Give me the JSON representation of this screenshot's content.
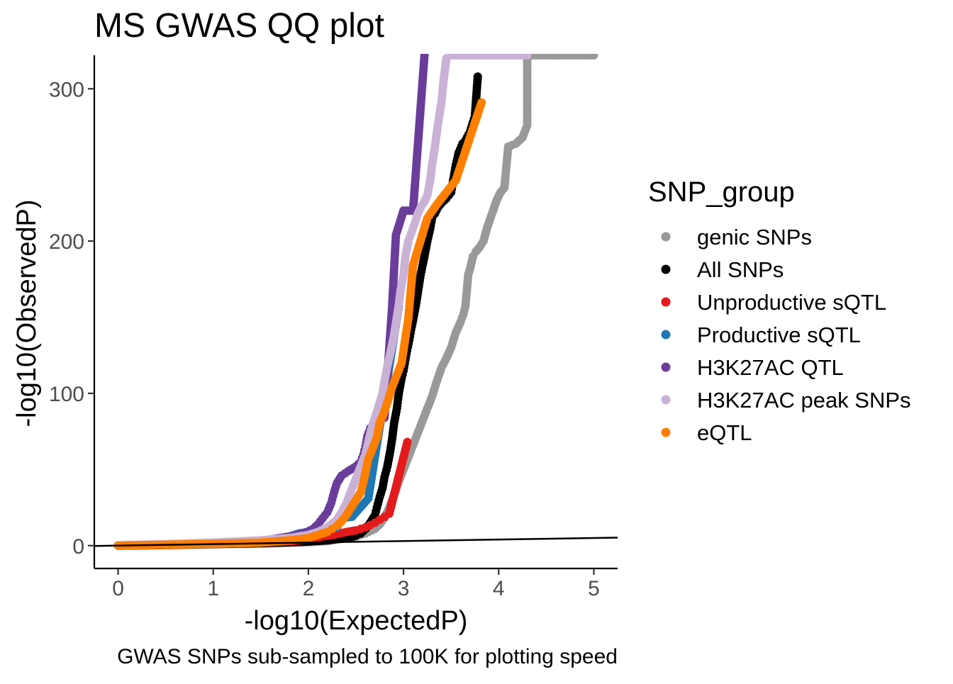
{
  "chart_data": {
    "type": "scatter",
    "title": "MS GWAS QQ plot",
    "xlabel": "-log10(ExpectedP)",
    "ylabel": "-log10(ObservedP)",
    "caption": "GWAS SNPs sub-sampled to 100K for plotting speed",
    "xlim": [
      -0.25,
      5.25
    ],
    "ylim": [
      -15,
      322
    ],
    "x_ticks": [
      {
        "value": 0,
        "label": "0"
      },
      {
        "value": 1,
        "label": "1"
      },
      {
        "value": 2,
        "label": "2"
      },
      {
        "value": 3,
        "label": "3"
      },
      {
        "value": 4,
        "label": "4"
      },
      {
        "value": 5,
        "label": "5"
      }
    ],
    "y_ticks": [
      {
        "value": 0,
        "label": "0"
      },
      {
        "value": 100,
        "label": "100"
      },
      {
        "value": 200,
        "label": "200"
      },
      {
        "value": 300,
        "label": "300"
      }
    ],
    "reference_line": {
      "type": "identity",
      "from": [
        -0.25,
        -0.25
      ],
      "to": [
        5.25,
        5.25
      ]
    },
    "grid": false,
    "legend": {
      "title": "SNP_group",
      "placement": "right"
    },
    "series": [
      {
        "name": "genic SNPs",
        "color": "#999999",
        "points": [
          [
            0,
            0
          ],
          [
            0.2,
            0.1
          ],
          [
            0.4,
            0.3
          ],
          [
            0.6,
            0.5
          ],
          [
            0.8,
            0.7
          ],
          [
            1,
            0.9
          ],
          [
            1.2,
            1.1
          ],
          [
            1.4,
            1.3
          ],
          [
            1.6,
            1.5
          ],
          [
            1.8,
            1.8
          ],
          [
            2,
            2.2
          ],
          [
            2.2,
            3
          ],
          [
            2.4,
            5
          ],
          [
            2.5,
            6
          ],
          [
            2.6,
            8
          ],
          [
            2.7,
            11
          ],
          [
            2.75,
            14
          ],
          [
            2.8,
            18
          ],
          [
            2.85,
            25
          ],
          [
            2.9,
            33
          ],
          [
            2.95,
            42
          ],
          [
            3,
            50
          ],
          [
            3.05,
            58
          ],
          [
            3.1,
            66
          ],
          [
            3.15,
            74
          ],
          [
            3.2,
            82
          ],
          [
            3.25,
            90
          ],
          [
            3.3,
            98
          ],
          [
            3.35,
            108
          ],
          [
            3.4,
            117
          ],
          [
            3.45,
            123
          ],
          [
            3.5,
            130
          ],
          [
            3.55,
            140
          ],
          [
            3.6,
            147
          ],
          [
            3.63,
            152
          ],
          [
            3.65,
            157
          ],
          [
            3.68,
            178
          ],
          [
            3.7,
            182
          ],
          [
            3.73,
            190
          ],
          [
            3.76,
            193
          ],
          [
            3.8,
            196
          ],
          [
            3.84,
            200
          ],
          [
            3.88,
            209
          ],
          [
            3.93,
            218
          ],
          [
            3.98,
            227
          ],
          [
            4.02,
            232
          ],
          [
            4.06,
            235
          ],
          [
            4.1,
            262
          ],
          [
            4.18,
            264
          ],
          [
            4.25,
            268
          ],
          [
            4.3,
            276
          ],
          [
            4.3,
            322
          ],
          [
            4.45,
            322
          ],
          [
            4.6,
            322
          ],
          [
            4.75,
            322
          ],
          [
            5,
            322
          ]
        ]
      },
      {
        "name": "All SNPs",
        "color": "#000000",
        "points": [
          [
            0,
            0
          ],
          [
            0.5,
            0.4
          ],
          [
            1,
            1
          ],
          [
            1.5,
            1.6
          ],
          [
            1.8,
            2.2
          ],
          [
            2,
            2.7
          ],
          [
            2.2,
            3.5
          ],
          [
            2.4,
            5
          ],
          [
            2.5,
            6.5
          ],
          [
            2.55,
            8
          ],
          [
            2.6,
            11
          ],
          [
            2.65,
            15
          ],
          [
            2.7,
            20
          ],
          [
            2.72,
            25
          ],
          [
            2.75,
            32
          ],
          [
            2.78,
            38
          ],
          [
            2.8,
            45
          ],
          [
            2.83,
            52
          ],
          [
            2.86,
            62
          ],
          [
            2.88,
            70
          ],
          [
            2.9,
            80
          ],
          [
            2.93,
            90
          ],
          [
            2.95,
            100
          ],
          [
            2.98,
            110
          ],
          [
            3,
            115
          ],
          [
            3.03,
            126
          ],
          [
            3.06,
            135
          ],
          [
            3.08,
            142
          ],
          [
            3.1,
            148
          ],
          [
            3.13,
            158
          ],
          [
            3.16,
            170
          ],
          [
            3.18,
            178
          ],
          [
            3.22,
            190
          ],
          [
            3.25,
            200
          ],
          [
            3.28,
            208
          ],
          [
            3.3,
            215
          ],
          [
            3.33,
            218
          ],
          [
            3.36,
            222
          ],
          [
            3.4,
            225
          ],
          [
            3.45,
            228
          ],
          [
            3.5,
            232
          ],
          [
            3.55,
            250
          ],
          [
            3.58,
            258
          ],
          [
            3.62,
            264
          ],
          [
            3.65,
            266
          ],
          [
            3.7,
            272
          ],
          [
            3.75,
            282
          ],
          [
            3.78,
            308
          ]
        ]
      },
      {
        "name": "Unproductive sQTL",
        "color": "#e41a1c",
        "points": [
          [
            0,
            0.1
          ],
          [
            0.3,
            0.3
          ],
          [
            0.5,
            0.5
          ],
          [
            0.8,
            0.9
          ],
          [
            1,
            1.1
          ],
          [
            1.2,
            1.4
          ],
          [
            1.4,
            1.8
          ],
          [
            1.6,
            2.3
          ],
          [
            1.8,
            2.9
          ],
          [
            1.9,
            3.5
          ],
          [
            2,
            4.5
          ],
          [
            2.1,
            5.5
          ],
          [
            2.2,
            6.5
          ],
          [
            2.3,
            7.5
          ],
          [
            2.4,
            9
          ],
          [
            2.5,
            10
          ],
          [
            2.55,
            11
          ],
          [
            2.6,
            12
          ],
          [
            2.65,
            13.5
          ],
          [
            2.7,
            15
          ],
          [
            2.75,
            17
          ],
          [
            2.8,
            19
          ],
          [
            2.85,
            21
          ],
          [
            3.04,
            68
          ]
        ]
      },
      {
        "name": "Productive sQTL",
        "color": "#1f78b4",
        "points": [
          [
            0,
            0.1
          ],
          [
            0.5,
            0.6
          ],
          [
            1,
            1.3
          ],
          [
            1.5,
            2.5
          ],
          [
            1.7,
            4
          ],
          [
            1.8,
            6
          ],
          [
            1.9,
            8
          ],
          [
            2,
            9
          ],
          [
            2.1,
            10
          ],
          [
            2.2,
            11
          ],
          [
            2.3,
            12
          ],
          [
            2.34,
            18
          ],
          [
            2.46,
            19
          ],
          [
            2.63,
            31
          ],
          [
            2.95,
            157
          ]
        ]
      },
      {
        "name": "H3K27AC QTL",
        "color": "#6a3d9a",
        "points": [
          [
            0,
            0.1
          ],
          [
            0.5,
            0.8
          ],
          [
            1,
            1.6
          ],
          [
            1.5,
            3
          ],
          [
            1.8,
            6
          ],
          [
            1.95,
            8
          ],
          [
            2.05,
            11
          ],
          [
            2.1,
            14
          ],
          [
            2.15,
            18
          ],
          [
            2.2,
            22
          ],
          [
            2.24,
            28
          ],
          [
            2.27,
            35
          ],
          [
            2.3,
            41
          ],
          [
            2.35,
            46
          ],
          [
            2.42,
            49
          ],
          [
            2.5,
            52
          ],
          [
            2.55,
            55
          ],
          [
            2.58,
            60
          ],
          [
            2.6,
            65
          ],
          [
            2.62,
            72
          ],
          [
            2.65,
            77
          ],
          [
            2.7,
            81
          ],
          [
            2.75,
            82
          ],
          [
            2.8,
            84
          ],
          [
            2.88,
            157
          ],
          [
            2.92,
            204
          ],
          [
            3.0,
            220
          ],
          [
            3.1,
            220
          ],
          [
            3.22,
            322
          ]
        ]
      },
      {
        "name": "H3K27AC peak SNPs",
        "color": "#cab2d6",
        "points": [
          [
            0,
            0.2
          ],
          [
            0.5,
            1
          ],
          [
            1,
            2
          ],
          [
            1.5,
            3.5
          ],
          [
            1.8,
            5
          ],
          [
            2,
            7
          ],
          [
            2.1,
            9
          ],
          [
            2.2,
            12
          ],
          [
            2.3,
            17
          ],
          [
            2.35,
            22
          ],
          [
            2.4,
            28
          ],
          [
            2.45,
            36
          ],
          [
            2.5,
            44
          ],
          [
            2.55,
            52
          ],
          [
            2.6,
            60
          ],
          [
            2.63,
            68
          ],
          [
            2.66,
            76
          ],
          [
            2.7,
            84
          ],
          [
            2.74,
            92
          ],
          [
            2.78,
            100
          ],
          [
            2.8,
            108
          ],
          [
            2.83,
            118
          ],
          [
            2.86,
            126
          ],
          [
            2.88,
            132
          ],
          [
            2.9,
            138
          ],
          [
            2.92,
            146
          ],
          [
            2.95,
            158
          ],
          [
            2.97,
            168
          ],
          [
            3.0,
            178
          ],
          [
            3.02,
            190
          ],
          [
            3.05,
            200
          ],
          [
            3.08,
            205
          ],
          [
            3.12,
            212
          ],
          [
            3.15,
            218
          ],
          [
            3.18,
            222
          ],
          [
            3.22,
            226
          ],
          [
            3.25,
            230
          ],
          [
            3.28,
            240
          ],
          [
            3.3,
            250
          ],
          [
            3.33,
            262
          ],
          [
            3.36,
            276
          ],
          [
            3.38,
            284
          ],
          [
            3.4,
            292
          ],
          [
            3.42,
            305
          ],
          [
            3.45,
            320
          ],
          [
            3.5,
            322
          ],
          [
            3.6,
            322
          ],
          [
            3.75,
            322
          ],
          [
            3.9,
            322
          ],
          [
            4.05,
            322
          ],
          [
            4.2,
            322
          ],
          [
            4.3,
            322
          ]
        ]
      },
      {
        "name": "eQTL",
        "color": "#ff7f00",
        "points": [
          [
            0,
            0.1
          ],
          [
            0.5,
            0.6
          ],
          [
            1,
            1.2
          ],
          [
            1.5,
            2
          ],
          [
            1.8,
            3.5
          ],
          [
            2,
            5
          ],
          [
            2.1,
            7
          ],
          [
            2.2,
            9
          ],
          [
            2.25,
            11
          ],
          [
            2.3,
            13
          ],
          [
            2.35,
            16
          ],
          [
            2.4,
            20
          ],
          [
            2.45,
            25
          ],
          [
            2.5,
            30
          ],
          [
            2.55,
            35
          ],
          [
            2.58,
            42
          ],
          [
            2.6,
            48
          ],
          [
            2.63,
            57
          ],
          [
            2.67,
            63
          ],
          [
            2.72,
            71
          ],
          [
            2.75,
            81
          ],
          [
            2.78,
            85
          ],
          [
            2.82,
            92
          ],
          [
            2.88,
            104
          ],
          [
            2.98,
            120
          ],
          [
            3.05,
            149
          ],
          [
            3.1,
            184
          ],
          [
            3.25,
            215
          ],
          [
            3.35,
            224
          ],
          [
            3.55,
            240
          ],
          [
            3.82,
            291
          ]
        ]
      }
    ]
  }
}
